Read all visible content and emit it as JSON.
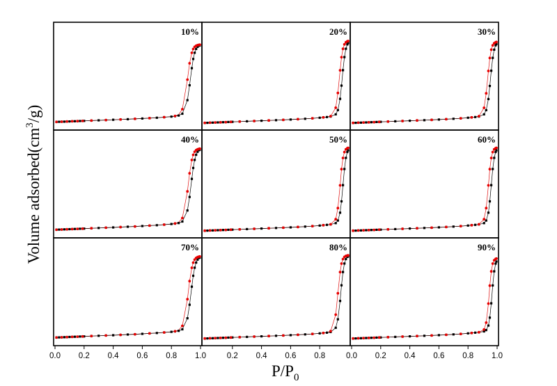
{
  "chart_data": {
    "type": "line",
    "layout": "3x3 grid of panels sharing axes",
    "xlabel_main": "P/P",
    "xlabel_sub": "0",
    "ylabel_main": "Volume adsorbed(cm",
    "ylabel_sup": "3",
    "ylabel_tail": "/g)",
    "xlim": [
      0,
      1.0
    ],
    "ylim": [
      0,
      1
    ],
    "y_tick_labels": false,
    "grid": false,
    "legend": "none",
    "colors": {
      "adsorption": "#000000",
      "desorption": "#e60000"
    },
    "x_tick_labels": {
      "panel1": [
        "0.0",
        "0.2",
        "0.4",
        "0.6",
        "0.8",
        "1.0"
      ],
      "panel2": [
        "0.2",
        "0.4",
        "0.6",
        "0.8"
      ],
      "panel3": [
        "0.0",
        "0.2",
        "0.4",
        "0.6",
        "0.8",
        "1.0"
      ]
    },
    "x_tick_values": {
      "panel1": [
        0.0,
        0.2,
        0.4,
        0.6,
        0.8,
        1.0
      ],
      "panel2": [
        0.2,
        0.4,
        0.6,
        0.8
      ],
      "panel3": [
        0.0,
        0.2,
        0.4,
        0.6,
        0.8,
        1.0
      ]
    },
    "panels": [
      {
        "label": "10%",
        "onset": 0.93,
        "width": 0.015,
        "top": 0.83,
        "low": 0.04,
        "slope": 0.055,
        "bend": 0.04
      },
      {
        "label": "20%",
        "onset": 0.955,
        "width": 0.012,
        "top": 0.87,
        "low": 0.03,
        "slope": 0.055,
        "bend": 0.035
      },
      {
        "label": "30%",
        "onset": 0.955,
        "width": 0.012,
        "top": 0.86,
        "low": 0.03,
        "slope": 0.055,
        "bend": 0.035
      },
      {
        "label": "40%",
        "onset": 0.935,
        "width": 0.015,
        "top": 0.87,
        "low": 0.04,
        "slope": 0.06,
        "bend": 0.04
      },
      {
        "label": "50%",
        "onset": 0.96,
        "width": 0.011,
        "top": 0.88,
        "low": 0.03,
        "slope": 0.055,
        "bend": 0.035
      },
      {
        "label": "60%",
        "onset": 0.96,
        "width": 0.011,
        "top": 0.88,
        "low": 0.03,
        "slope": 0.055,
        "bend": 0.035
      },
      {
        "label": "70%",
        "onset": 0.935,
        "width": 0.015,
        "top": 0.87,
        "low": 0.04,
        "slope": 0.06,
        "bend": 0.04
      },
      {
        "label": "80%",
        "onset": 0.945,
        "width": 0.012,
        "top": 0.88,
        "low": 0.03,
        "slope": 0.055,
        "bend": 0.035
      },
      {
        "label": "90%",
        "onset": 0.965,
        "width": 0.01,
        "top": 0.85,
        "low": 0.03,
        "slope": 0.055,
        "bend": 0.035
      }
    ],
    "series": [
      {
        "name": "",
        "role": "adsorption",
        "marker": "square"
      },
      {
        "name": "",
        "role": "desorption",
        "marker": "circle"
      }
    ]
  }
}
